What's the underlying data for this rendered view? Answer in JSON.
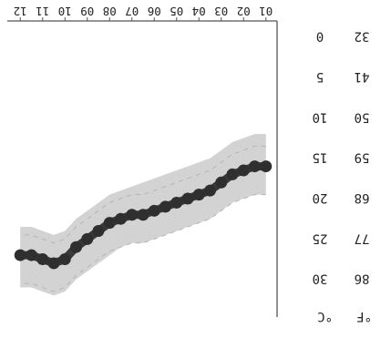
{
  "chart_data": {
    "type": "line",
    "title": "",
    "xlabel": "",
    "ylabel": "",
    "x_ticks": [
      "01",
      "02",
      "03",
      "04",
      "05",
      "06",
      "07",
      "08",
      "09",
      "10",
      "11",
      "12"
    ],
    "x": [
      1,
      1.5,
      2,
      2.5,
      3,
      3.5,
      4,
      4.5,
      5,
      5.5,
      6,
      6.5,
      7,
      7.5,
      8,
      8.5,
      9,
      9.5,
      10,
      10.5,
      11,
      11.5,
      12
    ],
    "series": [
      {
        "values": [
          16,
          16,
          16.5,
          17,
          18,
          19,
          19.5,
          20,
          20.5,
          21,
          21.5,
          22,
          22,
          22.5,
          23,
          24,
          25,
          26,
          27.5,
          28,
          27.5,
          27,
          27
        ]
      }
    ],
    "band": {
      "upper": [
        19.5,
        19.5,
        20,
        20.5,
        21.5,
        22.5,
        23,
        23.5,
        24,
        24.5,
        25,
        25.5,
        25.5,
        26,
        27,
        28,
        29,
        30,
        31.5,
        32,
        31.5,
        31,
        31
      ],
      "lower": [
        12,
        12,
        12.5,
        13,
        14,
        15,
        15.5,
        16,
        16.5,
        17,
        17.5,
        18,
        18.5,
        19,
        19.5,
        20.5,
        21.5,
        22.5,
        24,
        24.5,
        24,
        23.5,
        23.5
      ]
    },
    "y_axis_celsius": {
      "unit": "°C",
      "ticks": [
        "30",
        "25",
        "20",
        "15",
        "10",
        "5",
        "0"
      ],
      "values": [
        30,
        25,
        20,
        15,
        10,
        5,
        0
      ]
    },
    "y_axis_fahrenheit": {
      "unit": "°F",
      "ticks": [
        "86",
        "77",
        "68",
        "59",
        "50",
        "41",
        "32"
      ]
    },
    "ylim": [
      -2,
      35
    ],
    "grid": false,
    "orientation": "rotated 180 degrees"
  }
}
